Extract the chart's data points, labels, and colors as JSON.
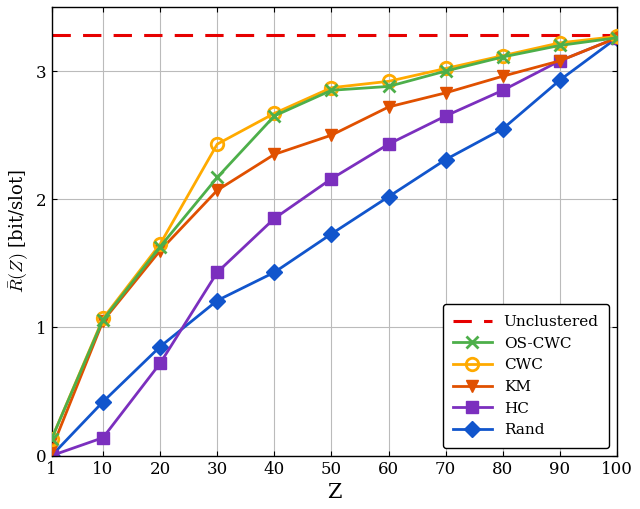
{
  "x": [
    1,
    10,
    20,
    30,
    40,
    50,
    60,
    70,
    80,
    90,
    100
  ],
  "unclustered_y": 3.28,
  "cwc": [
    0.13,
    1.07,
    1.65,
    2.43,
    2.67,
    2.87,
    2.92,
    3.02,
    3.12,
    3.22,
    3.27
  ],
  "os_cwc": [
    0.13,
    1.06,
    1.63,
    2.17,
    2.65,
    2.85,
    2.88,
    3.0,
    3.11,
    3.2,
    3.26
  ],
  "km": [
    0.05,
    1.05,
    1.6,
    2.07,
    2.35,
    2.5,
    2.72,
    2.83,
    2.96,
    3.08,
    3.26
  ],
  "hc": [
    0.0,
    0.14,
    0.72,
    1.43,
    1.85,
    2.16,
    2.43,
    2.65,
    2.85,
    3.08,
    3.26
  ],
  "rand": [
    0.0,
    0.42,
    0.85,
    1.21,
    1.43,
    1.73,
    2.02,
    2.31,
    2.55,
    2.93,
    3.26
  ],
  "colors": {
    "unclustered": "#e60000",
    "os_cwc": "#4daf4a",
    "cwc": "#ffaa00",
    "km": "#e05000",
    "hc": "#7b2fbe",
    "rand": "#1155cc"
  },
  "xlabel": "Z",
  "ylabel": "$\\bar{R}(Z)$ [bit/slot]",
  "ylim": [
    0,
    3.5
  ],
  "xlim": [
    1,
    100
  ],
  "yticks": [
    0,
    1,
    2,
    3
  ],
  "xticks": [
    1,
    10,
    20,
    30,
    40,
    50,
    60,
    70,
    80,
    90,
    100
  ],
  "grid": true,
  "figsize": [
    6.4,
    5.09
  ],
  "dpi": 100
}
